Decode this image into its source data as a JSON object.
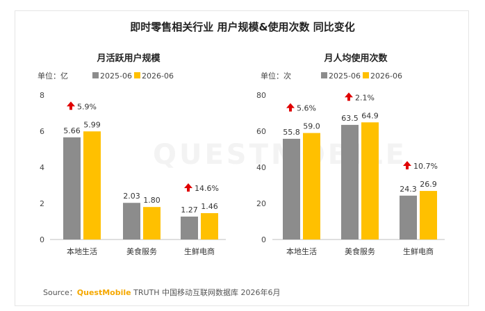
{
  "title": "即时零售相关行业 用户规模&使用次数 同比变化",
  "watermark": "QUESTMOBILE",
  "source": {
    "prefix": "Source：",
    "brand": "QuestMobile",
    "rest": " TRUTH 中国移动互联网数据库 2026年6月"
  },
  "colors": {
    "s2025": "#8c8c8c",
    "s2026": "#ffc000",
    "up_arrow": "#e00000"
  },
  "chart_data": [
    {
      "type": "bar",
      "title": "月活跃用户规模",
      "unit_label": "单位：亿",
      "categories": [
        "本地生活",
        "美食服务",
        "生鲜电商"
      ],
      "series": [
        {
          "name": "2025-06",
          "values": [
            5.66,
            2.03,
            1.27
          ],
          "labels": [
            "5.66",
            "2.03",
            "1.27"
          ]
        },
        {
          "name": "2026-06",
          "values": [
            5.99,
            1.8,
            1.46
          ],
          "labels": [
            "5.99",
            "1.80",
            "1.46"
          ]
        }
      ],
      "growth": [
        {
          "category": "本地生活",
          "text": "5.9%",
          "value": 5.9
        },
        {
          "category": "生鲜电商",
          "text": "14.6%",
          "value": 14.6
        }
      ],
      "ylim": [
        0,
        8
      ],
      "yticks": [
        0,
        2,
        4,
        6,
        8
      ],
      "legend": "top-center"
    },
    {
      "type": "bar",
      "title": "月人均使用次数",
      "unit_label": "单位：次",
      "categories": [
        "本地生活",
        "美食服务",
        "生鲜电商"
      ],
      "series": [
        {
          "name": "2025-06",
          "values": [
            55.8,
            63.5,
            24.3
          ],
          "labels": [
            "55.8",
            "63.5",
            "24.3"
          ]
        },
        {
          "name": "2026-06",
          "values": [
            59.0,
            64.9,
            26.9
          ],
          "labels": [
            "59.0",
            "64.9",
            "26.9"
          ]
        }
      ],
      "growth": [
        {
          "category": "本地生活",
          "text": "5.6%",
          "value": 5.6
        },
        {
          "category": "美食服务",
          "text": "2.1%",
          "value": 2.1
        },
        {
          "category": "生鲜电商",
          "text": "10.7%",
          "value": 10.7
        }
      ],
      "ylim": [
        0,
        80
      ],
      "yticks": [
        0,
        20,
        40,
        60,
        80
      ],
      "legend": "top-center"
    }
  ]
}
